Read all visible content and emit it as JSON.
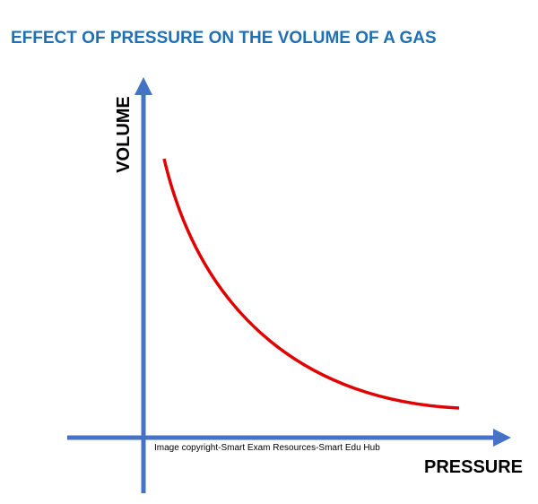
{
  "title": "EFFECT OF PRESSURE ON THE VOLUME OF A GAS",
  "y_axis_label": "VOLUME",
  "x_axis_label": "PRESSURE",
  "note": "Image copyright-Smart Exam Resources-Smart Edu Hub"
}
